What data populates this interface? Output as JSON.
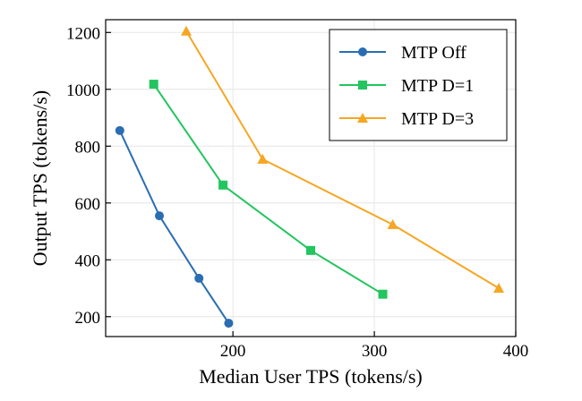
{
  "chart_data": {
    "type": "line",
    "title": "",
    "xlabel": "Median User TPS (tokens/s)",
    "ylabel": "Output TPS (tokens/s)",
    "xlim": [
      110,
      400
    ],
    "ylim": [
      130,
      1245
    ],
    "xticks": [
      200,
      300,
      400
    ],
    "yticks": [
      200,
      400,
      600,
      800,
      1000,
      1200
    ],
    "grid": true,
    "legend_position": "top-right",
    "series": [
      {
        "name": "MTP Off",
        "color": "#2a6db3",
        "marker": "circle",
        "points": [
          {
            "x": 120,
            "y": 855
          },
          {
            "x": 148,
            "y": 555
          },
          {
            "x": 176,
            "y": 335
          },
          {
            "x": 197,
            "y": 177
          }
        ]
      },
      {
        "name": "MTP D=1",
        "color": "#22c55e",
        "marker": "square",
        "points": [
          {
            "x": 144,
            "y": 1018
          },
          {
            "x": 193,
            "y": 663
          },
          {
            "x": 255,
            "y": 433
          },
          {
            "x": 306,
            "y": 279
          }
        ]
      },
      {
        "name": "MTP D=3",
        "color": "#f5a623",
        "marker": "triangle",
        "points": [
          {
            "x": 167,
            "y": 1205
          },
          {
            "x": 221,
            "y": 754
          },
          {
            "x": 313,
            "y": 524
          },
          {
            "x": 388,
            "y": 300
          }
        ]
      }
    ]
  }
}
